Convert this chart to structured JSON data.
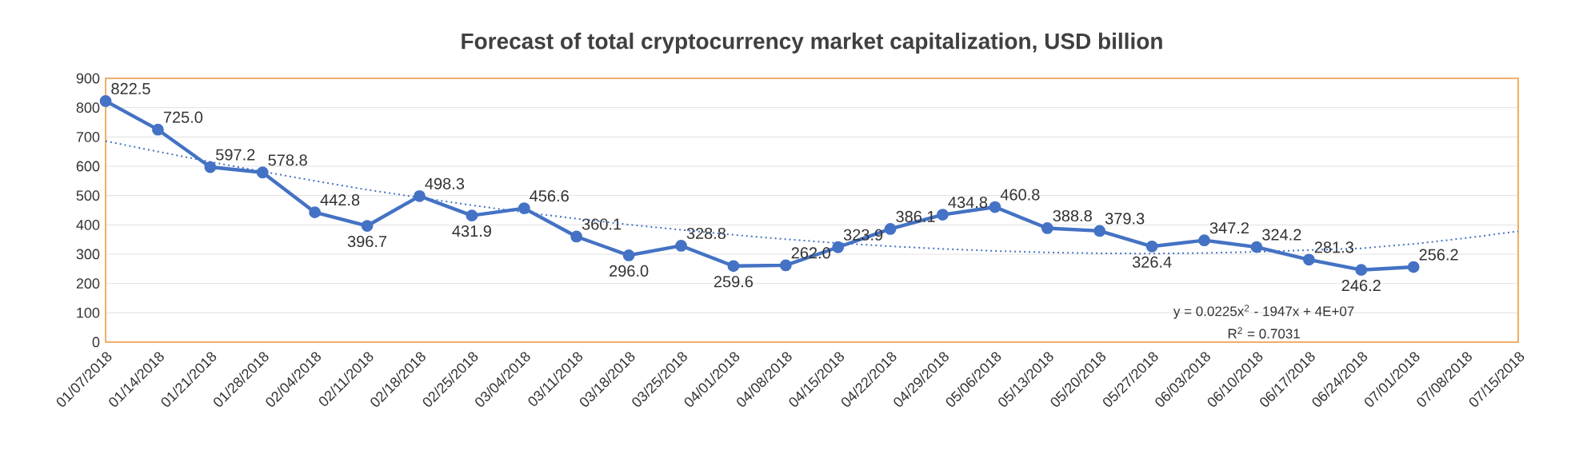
{
  "chart_data": {
    "type": "line",
    "title": "Forecast of total cryptocurrency market capitalization, USD billion",
    "categories": [
      "01/07/2018",
      "01/14/2018",
      "01/21/2018",
      "01/28/2018",
      "02/04/2018",
      "02/11/2018",
      "02/18/2018",
      "02/25/2018",
      "03/04/2018",
      "03/11/2018",
      "03/18/2018",
      "03/25/2018",
      "04/01/2018",
      "04/08/2018",
      "04/15/2018",
      "04/22/2018",
      "04/29/2018",
      "05/06/2018",
      "05/13/2018",
      "05/20/2018",
      "05/27/2018",
      "06/03/2018",
      "06/10/2018",
      "06/17/2018",
      "06/24/2018",
      "07/01/2018",
      "07/08/2018",
      "07/15/2018"
    ],
    "series": [
      {
        "color": "#4472c4",
        "marker": "circle",
        "line_style": "solid",
        "values": [
          822.5,
          725.0,
          597.2,
          578.8,
          442.8,
          396.7,
          498.3,
          431.9,
          456.6,
          360.1,
          296.0,
          328.8,
          259.6,
          262.0,
          323.9,
          386.1,
          434.8,
          460.8,
          388.8,
          379.3,
          326.4,
          347.2,
          324.2,
          281.3,
          246.2,
          256.2,
          null,
          null
        ],
        "value_labels": [
          "822.5",
          "725.0",
          "597.2",
          "578.8",
          "442.8",
          "396.7",
          "498.3",
          "431.9",
          "456.6",
          "360.1",
          "296.0",
          "328.8",
          "259.6",
          "262.0",
          "323.9",
          "386.1",
          "434.8",
          "460.8",
          "388.8",
          "379.3",
          "326.4",
          "347.2",
          "324.2",
          "281.3",
          "246.2",
          "256.2",
          null,
          null
        ]
      },
      {
        "color": "#4472c4",
        "marker": "none",
        "line_style": "dotted",
        "values": [
          686,
          650,
          615,
          582,
          550,
          520,
          493,
          467,
          443,
          421,
          401,
          383,
          366,
          351,
          338,
          327,
          318,
          311,
          306,
          303,
          302,
          304,
          308,
          314,
          320,
          335,
          355,
          378
        ]
      }
    ],
    "ylim": [
      0,
      900
    ],
    "yticks": [
      0,
      100,
      200,
      300,
      400,
      500,
      600,
      700,
      800,
      900
    ],
    "grid": "y",
    "annotations": [
      "y = 0.0225x$^{2}$ - 1947x + 4E+07",
      "R$^{2}$ = 0.7031"
    ]
  }
}
